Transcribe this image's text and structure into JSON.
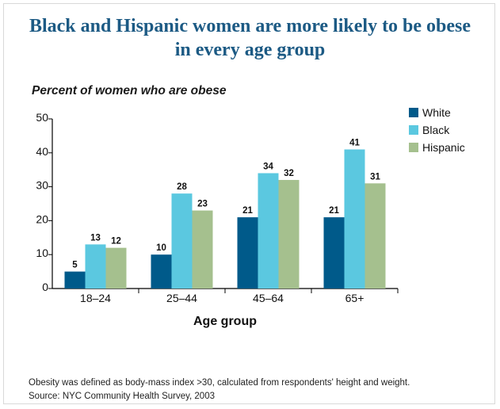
{
  "title": "Black and Hispanic women are more likely to be obese in every age group",
  "footnote": {
    "definition": "Obesity was defined as body-mass index >30, calculated from respondents' height and weight.",
    "source": "Source: NYC Community Health Survey, 2003"
  },
  "colors": {
    "White": "#005a8a",
    "Black": "#5bc8e0",
    "Hispanic": "#a5c08e",
    "title": "#1c5a84"
  },
  "chart_data": {
    "type": "bar",
    "title": "Percent of women who are obese",
    "xlabel": "Age group",
    "ylabel": "",
    "categories": [
      "18–24",
      "25–44",
      "45–64",
      "65+"
    ],
    "series": [
      {
        "name": "White",
        "values": [
          5,
          10,
          21,
          21
        ]
      },
      {
        "name": "Black",
        "values": [
          13,
          28,
          34,
          41
        ]
      },
      {
        "name": "Hispanic",
        "values": [
          12,
          23,
          32,
          31
        ]
      }
    ],
    "ylim": [
      0,
      50
    ],
    "yticks": [
      0,
      10,
      20,
      30,
      40,
      50
    ],
    "legend": "top-right",
    "grid": false
  }
}
